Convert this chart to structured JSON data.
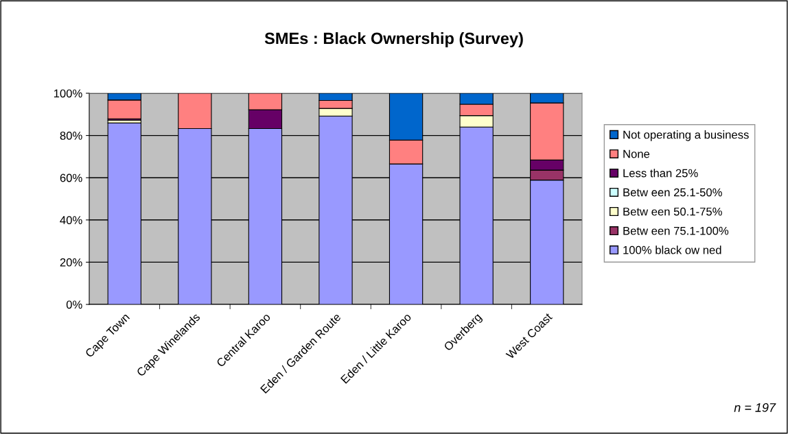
{
  "chart_data": {
    "type": "bar",
    "title": "SMEs : Black Ownership (Survey)",
    "stacked": true,
    "categories": [
      "Cape Town",
      "Cape Winelands",
      "Central Karoo",
      "Eden / Garden Route",
      "Eden / Little Karoo",
      "Overberg",
      "West Coast"
    ],
    "series": [
      {
        "name": "100% black ow ned",
        "color": "#9999ff",
        "values": [
          85.9,
          83.3,
          83.3,
          89.2,
          66.5,
          84.0,
          58.9
        ]
      },
      {
        "name": "Betw een 75.1-100%",
        "color": "#993366",
        "values": [
          0,
          0,
          0,
          0,
          0,
          0,
          4.7
        ]
      },
      {
        "name": "Betw een 50.1-75%",
        "color": "#ffffcc",
        "values": [
          1.3,
          0,
          0,
          3.6,
          0,
          5.4,
          0
        ]
      },
      {
        "name": "Betw een 25.1-50%",
        "color": "#ccffff",
        "values": [
          0,
          0,
          0,
          0,
          0,
          0,
          0
        ]
      },
      {
        "name": "Less than 25%",
        "color": "#660066",
        "values": [
          0.7,
          0,
          8.9,
          0,
          0,
          0,
          4.8
        ]
      },
      {
        "name": "None",
        "color": "#ff8080",
        "values": [
          8.9,
          16.7,
          7.8,
          3.8,
          11.3,
          5.4,
          27.0
        ]
      },
      {
        "name": "Not operating a business",
        "color": "#0066cc",
        "values": [
          3.2,
          0,
          0,
          3.4,
          22.2,
          5.2,
          4.6
        ]
      }
    ],
    "ylim": [
      0,
      100
    ],
    "yticks": [
      {
        "value": 0,
        "label": "0%"
      },
      {
        "value": 20,
        "label": "20%"
      },
      {
        "value": 40,
        "label": "40%"
      },
      {
        "value": 60,
        "label": "60%"
      },
      {
        "value": 80,
        "label": "80%"
      },
      {
        "value": 100,
        "label": "100%"
      }
    ],
    "grid": "y",
    "legend": "right",
    "annotations": [
      "n = 197"
    ]
  }
}
